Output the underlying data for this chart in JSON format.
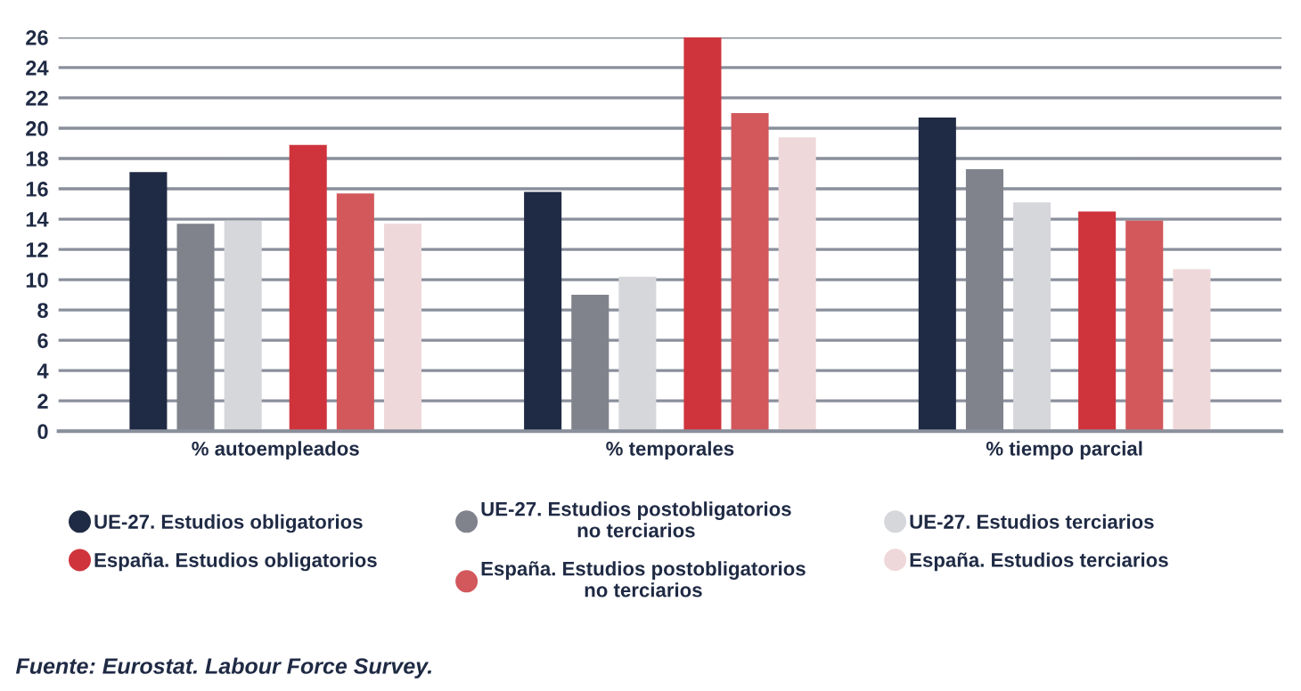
{
  "chart_data": {
    "type": "bar",
    "categories": [
      "% autoempleados",
      "% temporales",
      "% tiempo parcial"
    ],
    "series": [
      {
        "name": "UE-27. Estudios obligatorios",
        "color": "#1f2a44",
        "values": [
          17.1,
          15.8,
          20.7
        ]
      },
      {
        "name": "UE-27. Estudios postobligatorios\nno terciarios",
        "color": "#80838c",
        "values": [
          13.7,
          9.0,
          17.3
        ]
      },
      {
        "name": "UE-27. Estudios terciarios",
        "color": "#d6d7db",
        "values": [
          13.9,
          10.2,
          15.1
        ]
      },
      {
        "name": "España. Estudios obligatorios",
        "color": "#cf343c",
        "values": [
          18.9,
          26.0,
          14.5
        ]
      },
      {
        "name": "España. Estudios postobligatorios\nno terciarios",
        "color": "#d2585c",
        "values": [
          15.7,
          21.0,
          13.9
        ]
      },
      {
        "name": "España. Estudios terciarios",
        "color": "#efd8da",
        "values": [
          13.7,
          19.4,
          10.7
        ]
      }
    ],
    "ylim": [
      0,
      26
    ],
    "yticks": [
      0,
      2,
      4,
      6,
      8,
      10,
      12,
      14,
      16,
      18,
      20,
      22,
      24,
      26
    ],
    "grid": "y",
    "legend": "bottom",
    "annotations": [
      "Fuente: Eurostat. Labour Force Survey."
    ]
  }
}
